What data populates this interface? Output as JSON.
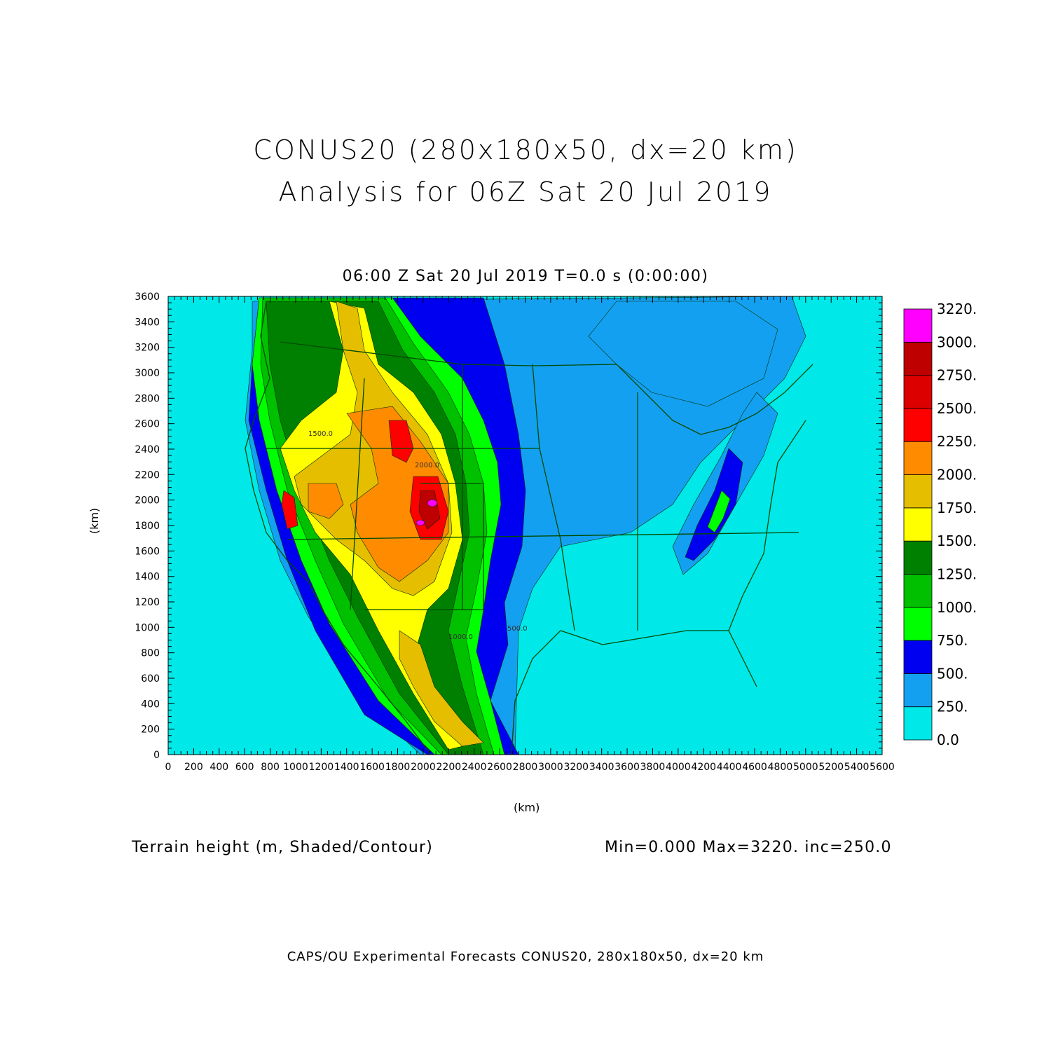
{
  "header": {
    "title_line1": "CONUS20 (280x180x50, dx=20 km)",
    "title_line2": "Analysis for 06Z Sat 20 Jul 2019",
    "subtitle": "06:00 Z Sat 20 Jul 2019    T=0.0 s (0:00:00)"
  },
  "axes": {
    "x_unit": "(km)",
    "y_unit": "(km)",
    "x_ticks": [
      "0",
      "200",
      "400",
      "600",
      "800",
      "1000",
      "1200",
      "1400",
      "1600",
      "1800",
      "2000",
      "2200",
      "2400",
      "2600",
      "2800",
      "3000",
      "3200",
      "3400",
      "3600",
      "3800",
      "4000",
      "4200",
      "4400",
      "4600",
      "4800",
      "5000",
      "5200",
      "5400",
      "5600"
    ],
    "y_ticks": [
      "0",
      "200",
      "400",
      "600",
      "800",
      "1000",
      "1200",
      "1400",
      "1600",
      "1800",
      "2000",
      "2200",
      "2400",
      "2600",
      "2800",
      "3000",
      "3200",
      "3400",
      "3600"
    ]
  },
  "colorbar": {
    "labels": [
      "0.0",
      "250.",
      "500.",
      "750.",
      "1000.",
      "1250.",
      "1500.",
      "1750.",
      "2000.",
      "2250.",
      "2500.",
      "2750.",
      "3000.",
      "3220."
    ],
    "colors": [
      "#00e8e8",
      "#14a0f0",
      "#0000f0",
      "#00ff00",
      "#00c000",
      "#008000",
      "#ffff00",
      "#e6be00",
      "#ff8c00",
      "#ff0000",
      "#dc0000",
      "#be0000",
      "#ff00ff"
    ]
  },
  "map": {
    "ocean_color": "#00e8e8",
    "boundary_color": "#005000",
    "contour_labels": [
      "1500.0",
      "2000.0",
      "1000.0",
      "500.0"
    ]
  },
  "footer": {
    "field": "Terrain height (m, Shaded/Contour)",
    "stats": "Min=0.000 Max=3220. inc=250.0",
    "credit": "CAPS/OU Experimental Forecasts  CONUS20, 280x180x50, dx=20 km"
  }
}
